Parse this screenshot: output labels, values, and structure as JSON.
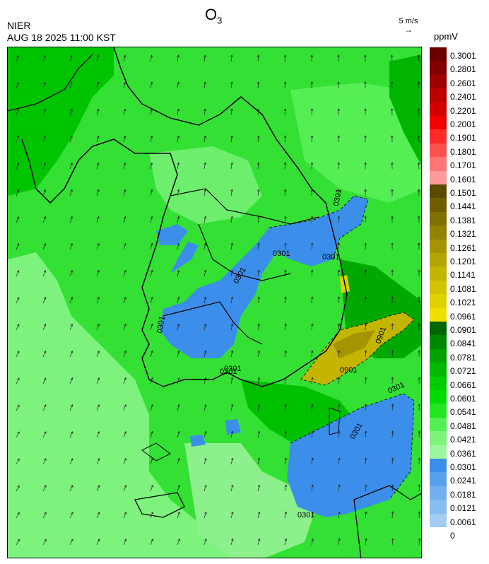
{
  "header": {
    "title_main": "O",
    "title_sub": "3",
    "source": "NIER",
    "datetime": "AUG 18 2025 11:00 KST",
    "wind_ref_label": "5 m/s",
    "unit": "ppmV"
  },
  "legend": {
    "labels": [
      "0.3001",
      "0.2801",
      "0.2601",
      "0.2401",
      "0.2201",
      "0.2001",
      "0.1901",
      "0.1801",
      "0.1701",
      "0.1601",
      "0.1501",
      "0.1441",
      "0.1381",
      "0.1321",
      "0.1261",
      "0.1201",
      "0.1141",
      "0.1081",
      "0.1021",
      "0.0961",
      "0.0901",
      "0.0841",
      "0.0781",
      "0.0721",
      "0.0661",
      "0.0601",
      "0.0541",
      "0.0481",
      "0.0421",
      "0.0361",
      "0.0301",
      "0.0241",
      "0.0181",
      "0.0121",
      "0.0061",
      "0"
    ],
    "colors": [
      "#6b0000",
      "#840000",
      "#a00000",
      "#bb0000",
      "#d40000",
      "#f00000",
      "#ff2b2b",
      "#ff5050",
      "#ff7474",
      "#ff9a9a",
      "#5a4a00",
      "#6e5e00",
      "#807000",
      "#918300",
      "#a39400",
      "#b4a600",
      "#c4b500",
      "#d2c400",
      "#e0d200",
      "#eedf00",
      "#006600",
      "#008800",
      "#00a200",
      "#00b800",
      "#00cc00",
      "#00dc00",
      "#22e622",
      "#55ee55",
      "#7df27d",
      "#9df69d",
      "#3b8eea",
      "#5aa0ec",
      "#74b0ee",
      "#8abdf0",
      "#a2ccf2"
    ]
  },
  "map": {
    "contour_labels": [
      "0301",
      "0301",
      "0301",
      "0301",
      "0301",
      "0301",
      "0901",
      "0901",
      "0301",
      "0301",
      "0301",
      "0301"
    ]
  }
}
